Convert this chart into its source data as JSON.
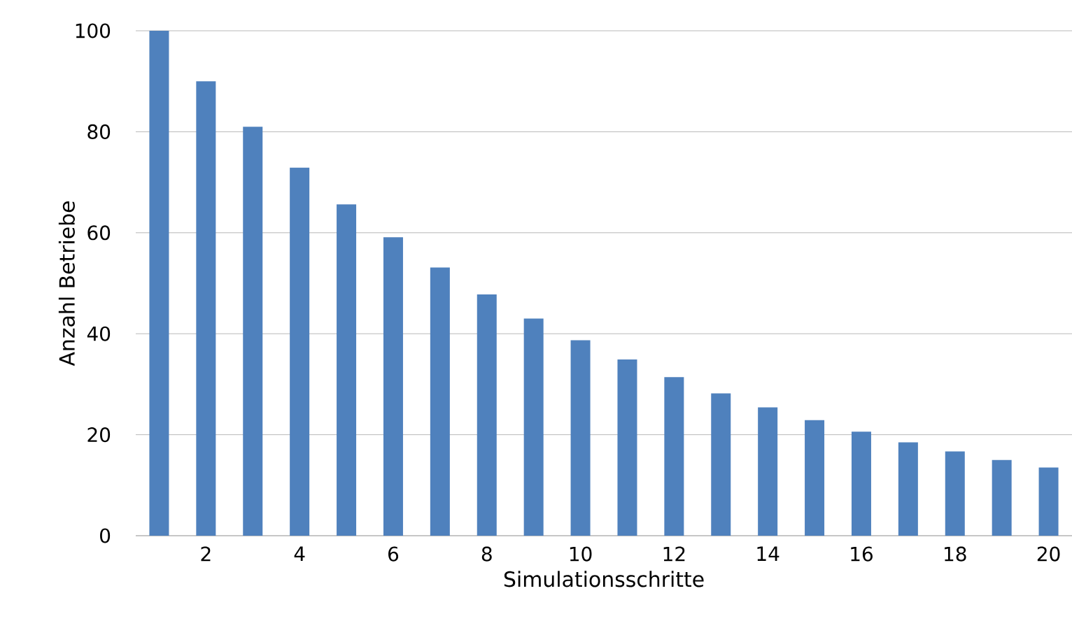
{
  "chart_data": {
    "type": "bar",
    "xlabel": "Simulationsschritte",
    "ylabel": "Anzahl Betriebe",
    "categories": [
      null,
      "2",
      null,
      "4",
      null,
      "6",
      null,
      "8",
      null,
      "10",
      null,
      "12",
      null,
      "14",
      null,
      "16",
      null,
      "18",
      null,
      "20"
    ],
    "values": [
      100,
      90,
      81,
      72.9,
      65.6,
      59.1,
      53.1,
      47.8,
      43,
      38.7,
      34.9,
      31.4,
      28.2,
      25.4,
      22.9,
      20.6,
      18.5,
      16.7,
      15,
      13.5
    ],
    "color": "#4f81bd",
    "ylim": [
      0,
      100
    ],
    "yticks": [
      0,
      20,
      40,
      60,
      80,
      100
    ],
    "grid": "y"
  }
}
